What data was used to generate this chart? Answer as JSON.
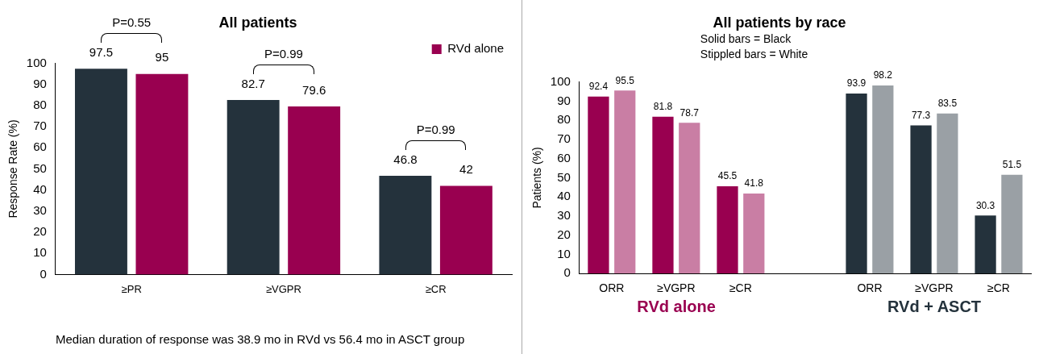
{
  "chart_data": [
    {
      "type": "bar",
      "title": "All patients",
      "ylabel": "Response Rate (%)",
      "categories": [
        "≥PR",
        "≥VGPR",
        "≥CR"
      ],
      "series": [
        {
          "color": "#24323c",
          "values": [
            97.5,
            82.7,
            46.8
          ]
        },
        {
          "name": "RVd alone",
          "color": "#990050",
          "values": [
            95,
            79.6,
            42
          ]
        }
      ],
      "ylim": [
        0,
        100
      ],
      "yticks": [
        0,
        10,
        20,
        30,
        40,
        50,
        60,
        70,
        80,
        90,
        100
      ],
      "data_labels": true,
      "legend": "top right",
      "annotations": [
        "P=0.55",
        "P=0.99",
        "P=0.99",
        "Median duration of response was 38.9 mo in RVd vs 56.4 mo in ASCT group"
      ]
    },
    {
      "type": "bar",
      "title": "All patients by race",
      "ylabel": "Patients (%)",
      "categories": [
        "ORR",
        "≥VGPR",
        "≥CR",
        null,
        "ORR",
        "≥VGPR",
        "≥CR"
      ],
      "series": [
        {
          "colors": [
            "#990050",
            "#990050",
            "#990050",
            null,
            "#24323c",
            "#24323c",
            "#24323c"
          ],
          "values": [
            92.4,
            81.8,
            45.5,
            null,
            93.9,
            77.3,
            30.3
          ]
        },
        {
          "colors": [
            "#c97ea4",
            "#c97ea4",
            "#c97ea4",
            null,
            "#9aa0a5",
            "#9aa0a5",
            "#9aa0a5"
          ],
          "values": [
            95.5,
            78.7,
            41.8,
            null,
            98.2,
            83.5,
            51.5
          ]
        }
      ],
      "ylim": [
        0,
        100
      ],
      "yticks": [
        0,
        10,
        20,
        30,
        40,
        50,
        60,
        70,
        80,
        90,
        100
      ],
      "data_labels": true,
      "annotations": [
        "Solid bars = Black",
        "Stippled bars = White",
        "RVd alone",
        "RVd + ASCT"
      ]
    }
  ]
}
